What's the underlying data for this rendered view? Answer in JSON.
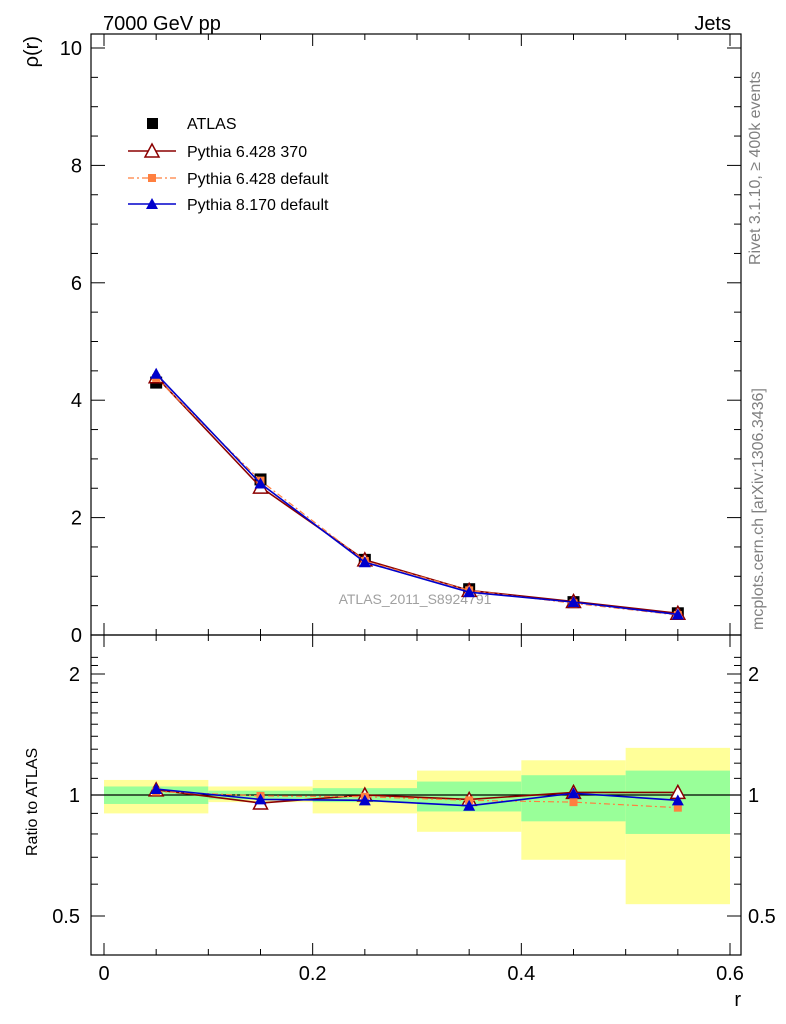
{
  "header": {
    "left": "7000 GeV pp",
    "right": "Jets"
  },
  "side_text": {
    "top": "Rivet 3.1.10, ≥ 400k events",
    "bottom": "mcplots.cern.ch [arXiv:1306.3436]"
  },
  "watermark": "ATLAS_2011_S8924791",
  "legend": {
    "atlas": "ATLAS",
    "p6_370": "Pythia 6.428 370",
    "p6_default": "Pythia 6.428 default",
    "p8_default": "Pythia 8.170 default"
  },
  "colors": {
    "atlas": "#000000",
    "p6_370": "#8b0000",
    "p6_default": "#ff7f3f",
    "p8_default": "#0000cc",
    "band_inner": "#99ff99",
    "band_outer": "#ffff99"
  },
  "chart_data": [
    {
      "type": "line",
      "title": "",
      "xlabel": "",
      "ylabel": "ρ(r)",
      "xlim": [
        0,
        0.6
      ],
      "ylim": [
        0,
        10
      ],
      "yticks": [
        "0",
        "2",
        "4",
        "6",
        "8",
        "10"
      ],
      "x": [
        0.05,
        0.15,
        0.25,
        0.35,
        0.45,
        0.55
      ],
      "series": [
        {
          "name": "ATLAS",
          "values": [
            4.3,
            2.65,
            1.28,
            0.78,
            0.56,
            0.37
          ]
        },
        {
          "name": "Pythia 6.428 370",
          "values": [
            4.4,
            2.52,
            1.28,
            0.76,
            0.57,
            0.37
          ]
        },
        {
          "name": "Pythia 6.428 default",
          "values": [
            4.38,
            2.63,
            1.26,
            0.76,
            0.54,
            0.34
          ]
        },
        {
          "name": "Pythia 8.170 default",
          "values": [
            4.45,
            2.58,
            1.24,
            0.73,
            0.56,
            0.35
          ]
        }
      ]
    },
    {
      "type": "line",
      "title": "",
      "xlabel": "r",
      "ylabel": "Ratio to ATLAS",
      "xlim": [
        0,
        0.6
      ],
      "ylim": [
        0.4,
        2.25
      ],
      "yticks": [
        "0.5",
        "1",
        "2"
      ],
      "xticks": [
        "0",
        "0.2",
        "0.4",
        "0.6"
      ],
      "x": [
        0.05,
        0.15,
        0.25,
        0.35,
        0.45,
        0.55
      ],
      "bins": [
        [
          0,
          0.1
        ],
        [
          0.1,
          0.2
        ],
        [
          0.2,
          0.3
        ],
        [
          0.3,
          0.4
        ],
        [
          0.4,
          0.5
        ],
        [
          0.5,
          0.6
        ]
      ],
      "band_inner": [
        [
          0.95,
          1.05
        ],
        [
          0.975,
          1.025
        ],
        [
          0.96,
          1.04
        ],
        [
          0.91,
          1.08
        ],
        [
          0.86,
          1.12
        ],
        [
          0.8,
          1.15
        ]
      ],
      "band_outer": [
        [
          0.9,
          1.09
        ],
        [
          0.96,
          1.05
        ],
        [
          0.9,
          1.09
        ],
        [
          0.81,
          1.15
        ],
        [
          0.69,
          1.22
        ],
        [
          0.535,
          1.31
        ]
      ],
      "series": [
        {
          "name": "Pythia 6.428 370",
          "values": [
            1.03,
            0.955,
            1.0,
            0.975,
            1.015,
            1.015
          ]
        },
        {
          "name": "Pythia 6.428 default",
          "values": [
            1.02,
            0.995,
            0.99,
            0.97,
            0.96,
            0.93
          ]
        },
        {
          "name": "Pythia 8.170 default",
          "values": [
            1.035,
            0.975,
            0.97,
            0.94,
            1.01,
            0.97
          ]
        }
      ]
    }
  ]
}
